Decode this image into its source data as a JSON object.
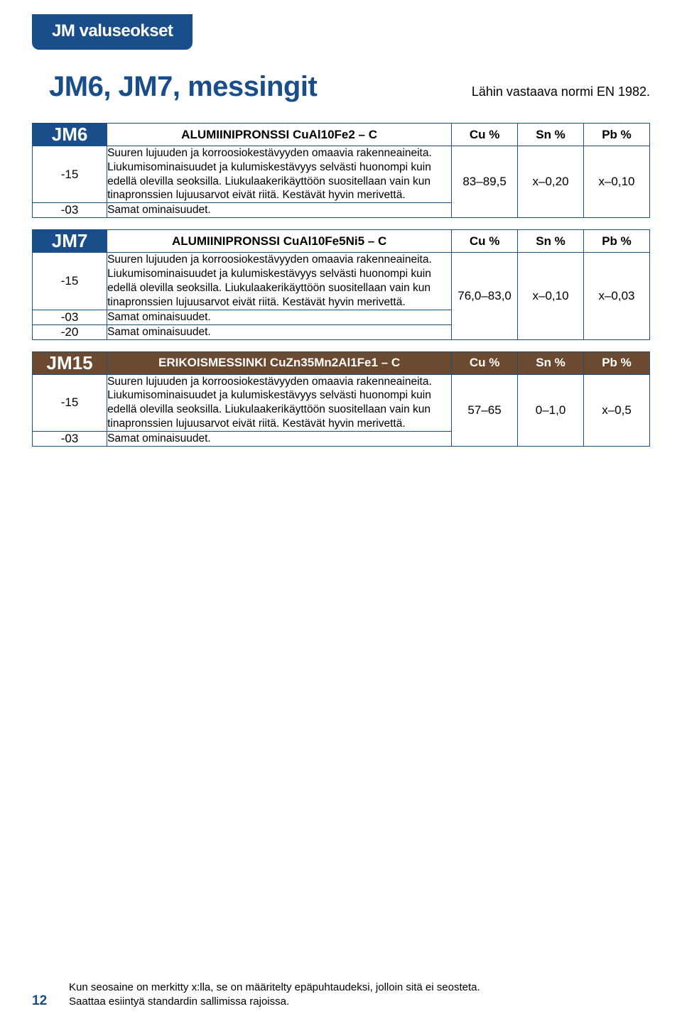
{
  "header_tab": "JM valuseokset",
  "title": "JM6, JM7, messingit",
  "norm_text": "Lähin vastaava normi EN 1982.",
  "columns": {
    "cu": "Cu %",
    "sn": "Sn %",
    "pb": "Pb %"
  },
  "jm6": {
    "code": "JM6",
    "name": "ALUMIINIPRONSSI CuAl10Fe2 – C",
    "rows": [
      {
        "sub": "-15",
        "desc": "Suuren lujuuden ja korroosiokestävyyden omaavia rakenneaineita. Liukumisominaisuudet ja kulumiskestävyys selvästi huonompi kuin edellä olevilla seoksilla. Liukulaakerikäyttöön suositellaan vain kun tinapronssien lujuusarvot eivät riitä. Kestävät hyvin merivettä."
      },
      {
        "sub": "-03",
        "desc": "Samat ominaisuudet."
      }
    ],
    "values": {
      "cu": "83–89,5",
      "sn": "x–0,20",
      "pb": "x–0,10"
    }
  },
  "jm7": {
    "code": "JM7",
    "name": "ALUMIINIPRONSSI CuAl10Fe5Ni5 – C",
    "rows": [
      {
        "sub": "-15",
        "desc": "Suuren lujuuden ja korroosiokestävyyden omaavia rakenneaineita. Liukumisominaisuudet ja kulumiskestävyys selvästi huonompi kuin edellä olevilla seoksilla. Liukulaakerikäyttöön suositellaan vain kun tinapronssien lujuusarvot eivät riitä. Kestävät hyvin merivettä."
      },
      {
        "sub": "-03",
        "desc": "Samat ominaisuudet."
      },
      {
        "sub": "-20",
        "desc": "Samat ominaisuudet."
      }
    ],
    "values": {
      "cu": "76,0–83,0",
      "sn": "x–0,10",
      "pb": "x–0,03"
    }
  },
  "jm15": {
    "code": "JM15",
    "name": "ERIKOISMESSINKI CuZn35Mn2Al1Fe1 – C",
    "rows": [
      {
        "sub": "-15",
        "desc": "Suuren lujuuden ja korroosiokestävyyden omaavia rakenneaineita. Liukumisominaisuudet ja kulumiskestävyys selvästi huonompi kuin edellä olevilla seoksilla. Liukulaakerikäyttöön suositellaan vain kun tinapronssien lujuusarvot eivät riitä. Kestävät hyvin merivettä."
      },
      {
        "sub": "-03",
        "desc": "Samat ominaisuudet."
      }
    ],
    "values": {
      "cu": "57–65",
      "sn": "0–1,0",
      "pb": "x–0,5"
    }
  },
  "footnote1": "Kun seosaine on merkitty x:lla, se on määritelty epäpuhtaudeksi, jolloin sitä ei seosteta.",
  "footnote2": "Saattaa esiintyä standardin sallimissa rajoissa.",
  "page_number": "12",
  "colors": {
    "brand_blue": "#194e8a",
    "brown": "#6b4a2f",
    "white": "#ffffff",
    "black": "#000000"
  }
}
